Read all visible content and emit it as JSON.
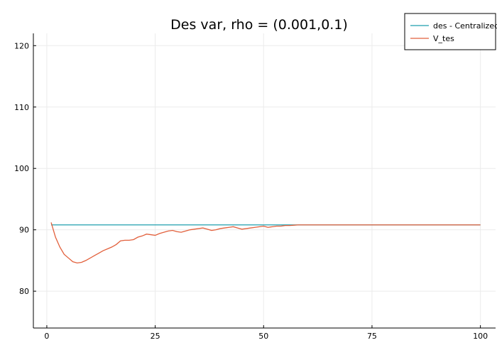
{
  "chart_data": {
    "type": "line",
    "title": "Des var, rho = (0.001,0.1)",
    "xlabel": "",
    "ylabel": "",
    "xlim": [
      0,
      100
    ],
    "ylim": [
      74,
      122
    ],
    "xticks": [
      0,
      25,
      50,
      75,
      100
    ],
    "yticks": [
      80,
      90,
      100,
      110,
      120
    ],
    "xtick_labels": [
      "0",
      "25",
      "50",
      "75",
      "100"
    ],
    "ytick_labels": [
      "80",
      "90",
      "100",
      "110",
      "120"
    ],
    "grid": true,
    "legend_position": "top-right",
    "series": [
      {
        "name": "des - Centralized",
        "color": "#1f9fae",
        "x": [
          1,
          100
        ],
        "y": [
          90.8,
          90.8
        ]
      },
      {
        "name": "V_tes",
        "color": "#e2603c",
        "x": [
          1,
          2,
          3,
          4,
          5,
          6,
          7,
          8,
          9,
          10,
          11,
          12,
          13,
          14,
          15,
          16,
          17,
          18,
          19,
          20,
          21,
          22,
          23,
          24,
          25,
          26,
          27,
          28,
          29,
          30,
          31,
          32,
          33,
          34,
          35,
          36,
          37,
          38,
          39,
          40,
          41,
          42,
          43,
          44,
          45,
          46,
          47,
          48,
          49,
          50,
          51,
          52,
          53,
          54,
          55,
          56,
          57,
          58,
          60,
          65,
          70,
          75,
          80,
          85,
          90,
          95,
          100
        ],
        "y": [
          91.2,
          88.8,
          87.2,
          86.0,
          85.4,
          84.8,
          84.6,
          84.7,
          85.0,
          85.4,
          85.8,
          86.2,
          86.6,
          86.9,
          87.2,
          87.6,
          88.2,
          88.3,
          88.3,
          88.4,
          88.8,
          89.0,
          89.3,
          89.2,
          89.1,
          89.4,
          89.6,
          89.8,
          89.9,
          89.7,
          89.6,
          89.8,
          90.0,
          90.1,
          90.2,
          90.3,
          90.1,
          89.9,
          90.0,
          90.2,
          90.3,
          90.4,
          90.5,
          90.3,
          90.1,
          90.2,
          90.3,
          90.4,
          90.5,
          90.6,
          90.4,
          90.5,
          90.6,
          90.6,
          90.7,
          90.7,
          90.75,
          90.8,
          90.8,
          90.8,
          90.8,
          90.8,
          90.8,
          90.8,
          90.8,
          90.8,
          90.8
        ]
      }
    ]
  }
}
